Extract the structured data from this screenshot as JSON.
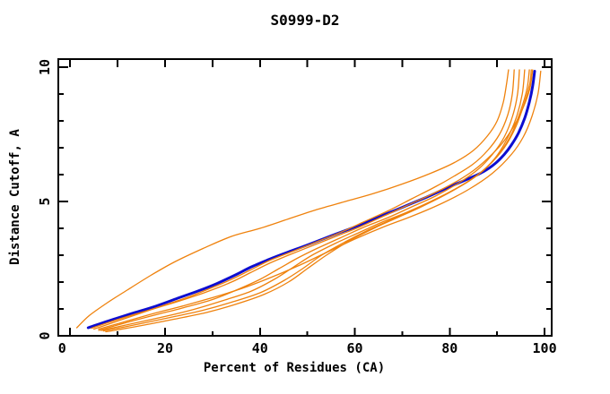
{
  "chart_data": {
    "type": "line",
    "title": "S0999-D2",
    "xlabel": "Percent of Residues (CA)",
    "ylabel": "Distance Cutoff, A",
    "xlim": [
      -2.5,
      101.5
    ],
    "ylim": [
      0,
      10.3
    ],
    "x_axis": {
      "range": [
        0,
        100
      ],
      "minor_step": 10,
      "major_ticks": [
        0,
        20,
        40,
        60,
        80,
        100
      ],
      "tick_labels": [
        "0",
        "20",
        "40",
        "60",
        "80",
        "100"
      ]
    },
    "y_axis": {
      "range": [
        0,
        10
      ],
      "minor_step": 1,
      "major_ticks": [
        0,
        5,
        10
      ],
      "tick_labels": [
        "0",
        "5",
        "10"
      ]
    },
    "grid": false,
    "legend": false,
    "background_color": "#ffffff",
    "frame_color": "#000000",
    "accent_colors": {
      "model_blue": "#0d0dd0",
      "reference_orange": "#ef820d"
    },
    "series": [
      {
        "id": "model-blue",
        "color": "#0d0dd0",
        "width": 3,
        "points": [
          [
            3.8,
            0.3
          ],
          [
            8,
            0.55
          ],
          [
            13,
            0.83
          ],
          [
            18,
            1.1
          ],
          [
            23,
            1.42
          ],
          [
            27,
            1.67
          ],
          [
            31,
            1.95
          ],
          [
            35,
            2.28
          ],
          [
            38,
            2.55
          ],
          [
            42,
            2.85
          ],
          [
            46,
            3.12
          ],
          [
            50,
            3.38
          ],
          [
            55,
            3.72
          ],
          [
            60,
            4.05
          ],
          [
            65,
            4.42
          ],
          [
            70,
            4.78
          ],
          [
            75,
            5.15
          ],
          [
            80,
            5.55
          ],
          [
            84,
            5.85
          ],
          [
            87,
            6.1
          ],
          [
            89.5,
            6.4
          ],
          [
            91.5,
            6.75
          ],
          [
            93,
            7.1
          ],
          [
            94.5,
            7.55
          ],
          [
            95.8,
            8.1
          ],
          [
            96.8,
            8.7
          ],
          [
            97.5,
            9.3
          ],
          [
            97.9,
            9.85
          ]
        ]
      },
      {
        "id": "orange-1",
        "color": "#ef820d",
        "width": 1.3,
        "points": [
          [
            1.4,
            0.3
          ],
          [
            4,
            0.75
          ],
          [
            8,
            1.25
          ],
          [
            12,
            1.7
          ],
          [
            17,
            2.25
          ],
          [
            22,
            2.75
          ],
          [
            28,
            3.25
          ],
          [
            34,
            3.7
          ],
          [
            40,
            4.0
          ],
          [
            46,
            4.35
          ],
          [
            52,
            4.7
          ],
          [
            58,
            5.0
          ],
          [
            64,
            5.3
          ],
          [
            70,
            5.65
          ],
          [
            76,
            6.05
          ],
          [
            81,
            6.45
          ],
          [
            85,
            6.9
          ],
          [
            88,
            7.45
          ],
          [
            90,
            8.0
          ],
          [
            91.3,
            8.7
          ],
          [
            92,
            9.4
          ],
          [
            92.4,
            9.9
          ]
        ]
      },
      {
        "id": "orange-2",
        "color": "#ef820d",
        "width": 1.3,
        "points": [
          [
            5,
            0.25
          ],
          [
            10,
            0.55
          ],
          [
            15,
            0.85
          ],
          [
            20,
            1.15
          ],
          [
            25,
            1.45
          ],
          [
            30,
            1.8
          ],
          [
            34,
            2.1
          ],
          [
            38,
            2.45
          ],
          [
            42,
            2.8
          ],
          [
            47,
            3.15
          ],
          [
            52,
            3.5
          ],
          [
            57,
            3.85
          ],
          [
            62,
            4.25
          ],
          [
            67,
            4.65
          ],
          [
            72,
            5.1
          ],
          [
            77,
            5.55
          ],
          [
            81,
            5.95
          ],
          [
            85,
            6.4
          ],
          [
            88,
            6.9
          ],
          [
            90.5,
            7.5
          ],
          [
            92.2,
            8.2
          ],
          [
            93.2,
            9.0
          ],
          [
            93.6,
            9.9
          ]
        ]
      },
      {
        "id": "orange-3",
        "color": "#ef820d",
        "width": 1.3,
        "points": [
          [
            6,
            0.2
          ],
          [
            12,
            0.5
          ],
          [
            18,
            0.78
          ],
          [
            24,
            1.05
          ],
          [
            30,
            1.35
          ],
          [
            35,
            1.7
          ],
          [
            40,
            2.1
          ],
          [
            44,
            2.5
          ],
          [
            48,
            2.9
          ],
          [
            52,
            3.25
          ],
          [
            57,
            3.65
          ],
          [
            62,
            4.05
          ],
          [
            67,
            4.4
          ],
          [
            72,
            4.8
          ],
          [
            77,
            5.2
          ],
          [
            82,
            5.7
          ],
          [
            86,
            6.2
          ],
          [
            89,
            6.75
          ],
          [
            91.5,
            7.4
          ],
          [
            93.3,
            8.2
          ],
          [
            94.3,
            9.0
          ],
          [
            94.7,
            9.9
          ]
        ]
      },
      {
        "id": "orange-4",
        "color": "#ef820d",
        "width": 1.3,
        "points": [
          [
            6.5,
            0.2
          ],
          [
            13,
            0.45
          ],
          [
            20,
            0.72
          ],
          [
            26,
            0.98
          ],
          [
            32,
            1.3
          ],
          [
            38,
            1.65
          ],
          [
            43,
            2.1
          ],
          [
            47,
            2.55
          ],
          [
            51,
            3.0
          ],
          [
            56,
            3.45
          ],
          [
            61,
            3.85
          ],
          [
            66,
            4.25
          ],
          [
            71,
            4.6
          ],
          [
            76,
            5.0
          ],
          [
            81,
            5.45
          ],
          [
            86,
            6.0
          ],
          [
            89.5,
            6.6
          ],
          [
            92,
            7.3
          ],
          [
            94,
            8.1
          ],
          [
            95.3,
            9.0
          ],
          [
            95.8,
            9.9
          ]
        ]
      },
      {
        "id": "orange-5",
        "color": "#ef820d",
        "width": 1.3,
        "points": [
          [
            7,
            0.18
          ],
          [
            14,
            0.42
          ],
          [
            21,
            0.68
          ],
          [
            28,
            0.95
          ],
          [
            34,
            1.25
          ],
          [
            40,
            1.6
          ],
          [
            45,
            2.05
          ],
          [
            49,
            2.5
          ],
          [
            53,
            3.0
          ],
          [
            58,
            3.5
          ],
          [
            63,
            3.95
          ],
          [
            68,
            4.35
          ],
          [
            73,
            4.75
          ],
          [
            78,
            5.15
          ],
          [
            83,
            5.65
          ],
          [
            87,
            6.15
          ],
          [
            90.5,
            6.8
          ],
          [
            93,
            7.5
          ],
          [
            95,
            8.4
          ],
          [
            96.3,
            9.2
          ],
          [
            96.8,
            9.9
          ]
        ]
      },
      {
        "id": "orange-6",
        "color": "#ef820d",
        "width": 1.3,
        "points": [
          [
            7.5,
            0.15
          ],
          [
            15,
            0.38
          ],
          [
            22,
            0.62
          ],
          [
            29,
            0.88
          ],
          [
            35,
            1.18
          ],
          [
            41,
            1.55
          ],
          [
            46,
            2.0
          ],
          [
            50,
            2.5
          ],
          [
            54,
            3.0
          ],
          [
            59,
            3.55
          ],
          [
            64,
            4.0
          ],
          [
            69,
            4.4
          ],
          [
            74,
            4.8
          ],
          [
            79,
            5.25
          ],
          [
            84,
            5.75
          ],
          [
            88,
            6.3
          ],
          [
            91.5,
            7.0
          ],
          [
            94,
            7.8
          ],
          [
            95.8,
            8.7
          ],
          [
            96.9,
            9.4
          ],
          [
            97.2,
            9.9
          ]
        ]
      },
      {
        "id": "orange-7",
        "color": "#ef820d",
        "width": 1.3,
        "points": [
          [
            6,
            0.25
          ],
          [
            12,
            0.55
          ],
          [
            18,
            0.85
          ],
          [
            24,
            1.12
          ],
          [
            30,
            1.42
          ],
          [
            36,
            1.75
          ],
          [
            42,
            2.15
          ],
          [
            48,
            2.6
          ],
          [
            54,
            3.1
          ],
          [
            60,
            3.6
          ],
          [
            66,
            4.05
          ],
          [
            72,
            4.45
          ],
          [
            78,
            4.9
          ],
          [
            84,
            5.45
          ],
          [
            89,
            6.05
          ],
          [
            93,
            6.75
          ],
          [
            95.5,
            7.4
          ],
          [
            97.3,
            8.15
          ],
          [
            98.6,
            9.0
          ],
          [
            99.2,
            9.85
          ]
        ]
      },
      {
        "id": "orange-8",
        "color": "#ef820d",
        "width": 1.3,
        "points": [
          [
            4.5,
            0.28
          ],
          [
            9,
            0.55
          ],
          [
            14,
            0.82
          ],
          [
            19,
            1.08
          ],
          [
            24,
            1.35
          ],
          [
            29,
            1.65
          ],
          [
            34,
            2.0
          ],
          [
            38,
            2.35
          ],
          [
            42,
            2.7
          ],
          [
            46,
            3.0
          ],
          [
            51,
            3.35
          ],
          [
            56,
            3.7
          ],
          [
            61,
            4.05
          ],
          [
            66,
            4.45
          ],
          [
            71,
            4.85
          ],
          [
            76,
            5.25
          ],
          [
            81,
            5.7
          ],
          [
            85,
            6.15
          ],
          [
            88,
            6.6
          ],
          [
            91,
            7.15
          ],
          [
            93.5,
            7.8
          ],
          [
            95.5,
            8.5
          ],
          [
            96.9,
            9.2
          ],
          [
            97.5,
            9.9
          ]
        ]
      }
    ]
  }
}
